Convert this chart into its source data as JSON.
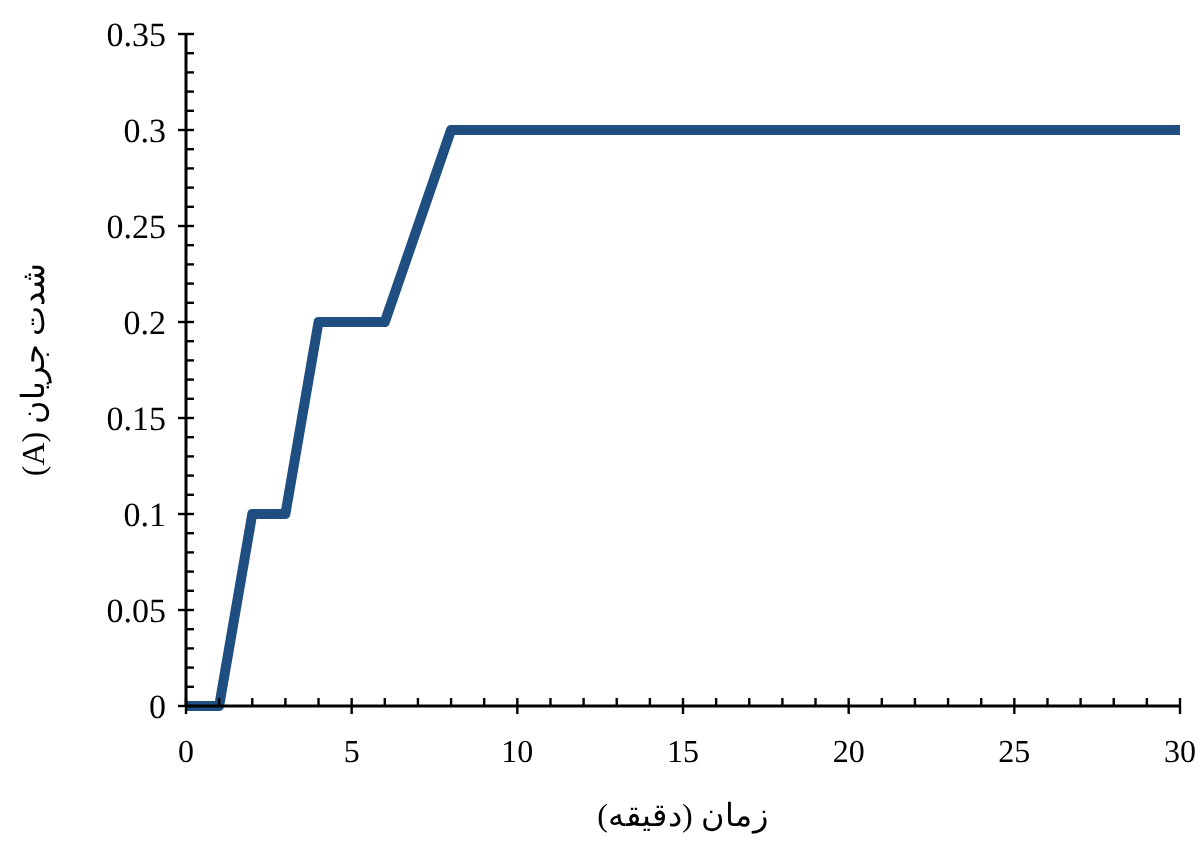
{
  "chart_data": {
    "type": "line",
    "xlabel": "زمان (دقیقه)",
    "ylabel": "شدت جریان (A)",
    "x": [
      0,
      1,
      2,
      3,
      4,
      6,
      8,
      30
    ],
    "series": [
      {
        "color": "#1f4e80",
        "values": [
          0,
          0,
          0.1,
          0.1,
          0.2,
          0.2,
          0.3,
          0.3
        ]
      }
    ],
    "xlim": [
      0,
      30
    ],
    "ylim": [
      0,
      0.35
    ],
    "xticks": [
      0,
      {
        "value": 1,
        "label": null
      },
      {
        "value": 2,
        "label": null
      },
      {
        "value": 3,
        "label": null
      },
      {
        "value": 4,
        "label": null
      },
      5,
      {
        "value": 6,
        "label": null
      },
      {
        "value": 7,
        "label": null
      },
      {
        "value": 8,
        "label": null
      },
      {
        "value": 9,
        "label": null
      },
      10,
      {
        "value": 11,
        "label": null
      },
      {
        "value": 12,
        "label": null
      },
      {
        "value": 13,
        "label": null
      },
      {
        "value": 14,
        "label": null
      },
      15,
      {
        "value": 16,
        "label": null
      },
      {
        "value": 17,
        "label": null
      },
      {
        "value": 18,
        "label": null
      },
      {
        "value": 19,
        "label": null
      },
      20,
      {
        "value": 21,
        "label": null
      },
      {
        "value": 22,
        "label": null
      },
      {
        "value": 23,
        "label": null
      },
      {
        "value": 24,
        "label": null
      },
      25,
      {
        "value": 26,
        "label": null
      },
      {
        "value": 27,
        "label": null
      },
      {
        "value": 28,
        "label": null
      },
      {
        "value": 29,
        "label": null
      },
      30
    ],
    "yticks": [
      0,
      {
        "value": 0.01,
        "label": null
      },
      {
        "value": 0.02,
        "label": null
      },
      {
        "value": 0.03,
        "label": null
      },
      {
        "value": 0.04,
        "label": null
      },
      0.05,
      {
        "value": 0.06,
        "label": null
      },
      {
        "value": 0.07,
        "label": null
      },
      {
        "value": 0.08,
        "label": null
      },
      {
        "value": 0.09,
        "label": null
      },
      0.1,
      {
        "value": 0.11,
        "label": null
      },
      {
        "value": 0.12,
        "label": null
      },
      {
        "value": 0.13,
        "label": null
      },
      {
        "value": 0.14,
        "label": null
      },
      0.15,
      {
        "value": 0.16,
        "label": null
      },
      {
        "value": 0.17,
        "label": null
      },
      {
        "value": 0.18,
        "label": null
      },
      {
        "value": 0.19,
        "label": null
      },
      0.2,
      {
        "value": 0.21,
        "label": null
      },
      {
        "value": 0.22,
        "label": null
      },
      {
        "value": 0.23,
        "label": null
      },
      {
        "value": 0.24,
        "label": null
      },
      0.25,
      {
        "value": 0.26,
        "label": null
      },
      {
        "value": 0.27,
        "label": null
      },
      {
        "value": 0.28,
        "label": null
      },
      {
        "value": 0.29,
        "label": null
      },
      0.3,
      {
        "value": 0.31,
        "label": null
      },
      {
        "value": 0.32,
        "label": null
      },
      {
        "value": 0.33,
        "label": null
      },
      {
        "value": 0.34,
        "label": null
      },
      0.35
    ],
    "grid": false,
    "marker": "none",
    "line_style": "solid"
  }
}
